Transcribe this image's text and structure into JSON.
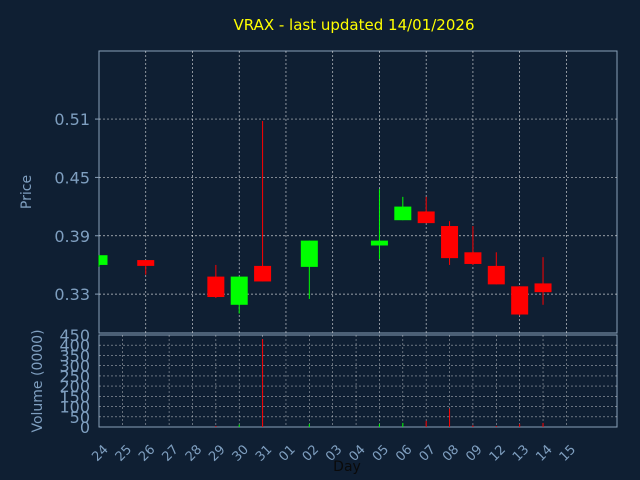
{
  "chart_data": {
    "type": "candlestick",
    "title": "VRAX - last updated 14/01/2026",
    "xlabel": "Day",
    "price_ylabel": "Price",
    "volume_ylabel": "Volume (0000)",
    "x_ticks": [
      "24",
      "25",
      "26",
      "27",
      "28",
      "29",
      "30",
      "31",
      "01",
      "02",
      "03",
      "04",
      "05",
      "06",
      "07",
      "08",
      "09",
      "12",
      "13",
      "14",
      "15"
    ],
    "price_ticks": [
      "0.51",
      "0.45",
      "0.39",
      "0.33"
    ],
    "price_tick_values": [
      0.51,
      0.45,
      0.39,
      0.33
    ],
    "price_ylim": [
      0.29,
      0.58
    ],
    "volume_ticks": [
      "450",
      "400",
      "350",
      "300",
      "250",
      "200",
      "150",
      "100",
      "50",
      "0"
    ],
    "volume_tick_values": [
      450,
      400,
      350,
      300,
      250,
      200,
      150,
      100,
      50,
      0
    ],
    "volume_ylim": [
      0,
      450
    ],
    "grid": true,
    "colors": {
      "up": "#00ff00",
      "down": "#ff0000",
      "grid": "#ffffff",
      "panel": "#0f1f33",
      "text": "#7f9fc0",
      "title": "#ffff00"
    },
    "candles": [
      {
        "day": "24",
        "open": 0.36,
        "high": 0.37,
        "low": 0.358,
        "close": 0.37,
        "volume": 0
      },
      {
        "day": "26",
        "open": 0.365,
        "high": 0.365,
        "low": 0.35,
        "close": 0.359,
        "volume": 0
      },
      {
        "day": "29",
        "open": 0.348,
        "high": 0.36,
        "low": 0.326,
        "close": 0.327,
        "volume": 5
      },
      {
        "day": "30",
        "open": 0.319,
        "high": 0.348,
        "low": 0.31,
        "close": 0.348,
        "volume": 12
      },
      {
        "day": "31",
        "open": 0.359,
        "high": 0.508,
        "low": 0.343,
        "close": 0.343,
        "volume": 430
      },
      {
        "day": "02",
        "open": 0.358,
        "high": 0.385,
        "low": 0.325,
        "close": 0.385,
        "volume": 15
      },
      {
        "day": "05",
        "open": 0.38,
        "high": 0.438,
        "low": 0.366,
        "close": 0.385,
        "volume": 15
      },
      {
        "day": "06",
        "open": 0.406,
        "high": 0.43,
        "low": 0.406,
        "close": 0.42,
        "volume": 20
      },
      {
        "day": "07",
        "open": 0.415,
        "high": 0.43,
        "low": 0.403,
        "close": 0.403,
        "volume": 30
      },
      {
        "day": "08",
        "open": 0.4,
        "high": 0.405,
        "low": 0.36,
        "close": 0.367,
        "volume": 90
      },
      {
        "day": "09",
        "open": 0.373,
        "high": 0.4,
        "low": 0.36,
        "close": 0.361,
        "volume": 8
      },
      {
        "day": "12",
        "open": 0.359,
        "high": 0.373,
        "low": 0.34,
        "close": 0.34,
        "volume": 5
      },
      {
        "day": "13",
        "open": 0.338,
        "high": 0.338,
        "low": 0.308,
        "close": 0.309,
        "volume": 15
      },
      {
        "day": "14",
        "open": 0.341,
        "high": 0.368,
        "low": 0.319,
        "close": 0.332,
        "volume": 20
      }
    ]
  }
}
